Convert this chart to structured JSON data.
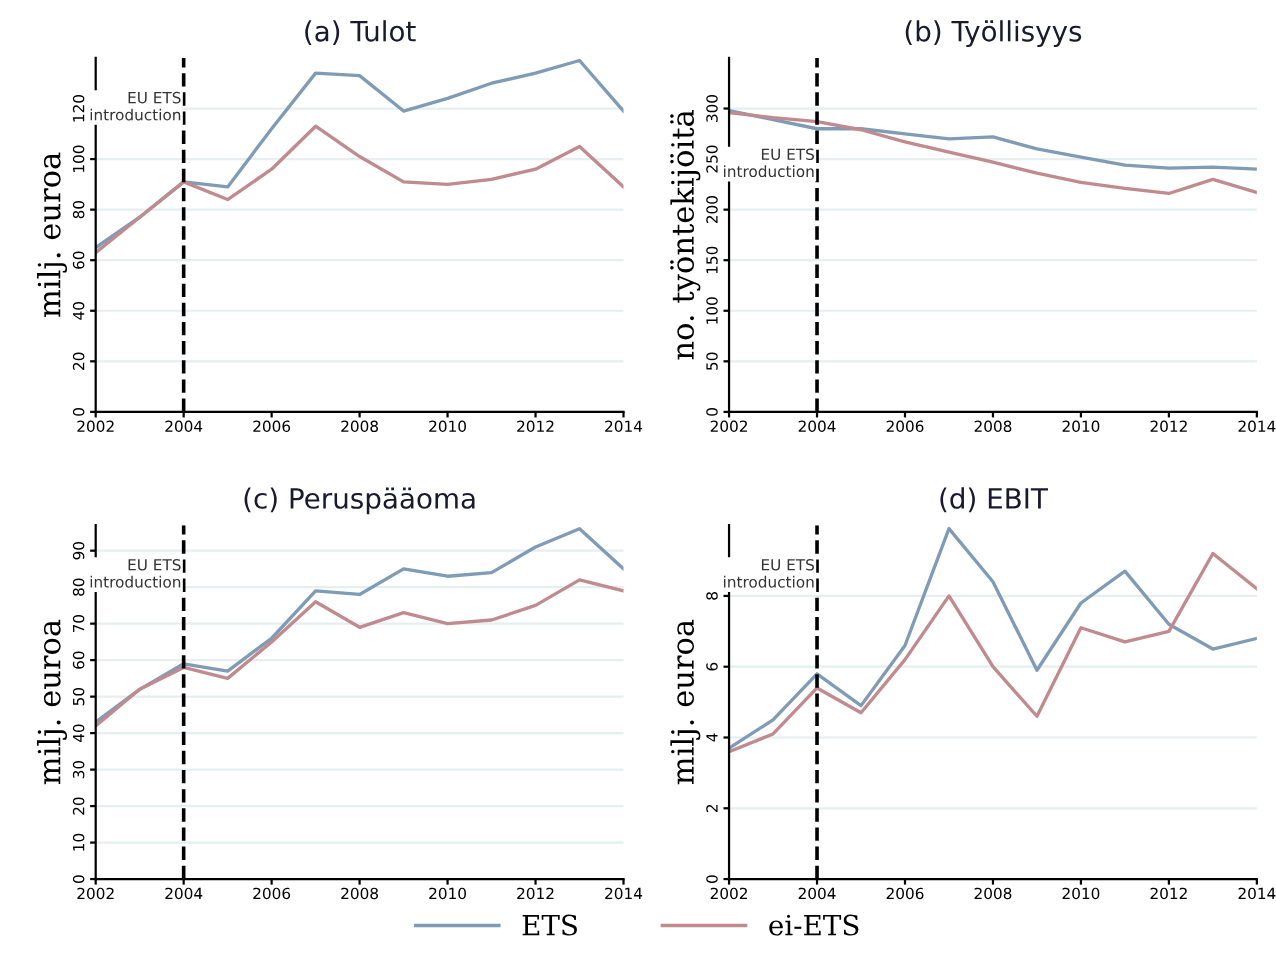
{
  "chart_data": [
    {
      "type": "line",
      "title": "(a) Tulot",
      "ylabel": "milj. euroa",
      "x": [
        2002,
        2003,
        2004,
        2005,
        2006,
        2007,
        2008,
        2009,
        2010,
        2011,
        2012,
        2013,
        2014
      ],
      "series": [
        {
          "color": "#7f9bb5",
          "values": [
            65,
            77,
            91,
            89,
            112,
            134,
            133,
            119,
            124,
            130,
            134,
            139,
            119
          ]
        },
        {
          "color": "#c08a8f",
          "values": [
            63,
            77,
            91,
            84,
            96,
            113,
            101,
            91,
            90,
            92,
            96,
            105,
            89
          ]
        }
      ],
      "xlim": [
        2002,
        2014
      ],
      "xticks": [
        2002,
        2004,
        2006,
        2008,
        2010,
        2012,
        2014
      ],
      "ylim": [
        0,
        140
      ],
      "yticks": [
        0,
        20,
        40,
        60,
        80,
        100,
        120
      ],
      "grid": "y",
      "ref_lines": [
        {
          "axis": "x",
          "value": 2004,
          "label": "EU ETS\nintroduction",
          "color": "#000000",
          "line_style": "dashed"
        }
      ]
    },
    {
      "type": "line",
      "title": "(b) Työllisyys",
      "ylabel": "no. työntekijöitä",
      "x": [
        2002,
        2003,
        2004,
        2005,
        2006,
        2007,
        2008,
        2009,
        2010,
        2011,
        2012,
        2013,
        2014
      ],
      "series": [
        {
          "color": "#7f9bb5",
          "values": [
            298,
            289,
            280,
            280,
            275,
            270,
            272,
            260,
            252,
            244,
            241,
            242,
            240
          ]
        },
        {
          "color": "#c08a8f",
          "values": [
            296,
            291,
            287,
            279,
            267,
            257,
            247,
            236,
            227,
            221,
            216,
            230,
            217
          ]
        }
      ],
      "xlim": [
        2002,
        2014
      ],
      "xticks": [
        2002,
        2004,
        2006,
        2008,
        2010,
        2012,
        2014
      ],
      "ylim": [
        0,
        350
      ],
      "yticks": [
        0,
        50,
        100,
        150,
        200,
        250,
        300
      ],
      "grid": "y",
      "ref_lines": [
        {
          "axis": "x",
          "value": 2004,
          "label": "EU ETS\nintroduction",
          "color": "#000000",
          "line_style": "dashed"
        }
      ]
    },
    {
      "type": "line",
      "title": "(c) Peruspääoma",
      "ylabel": "milj. euroa",
      "x": [
        2002,
        2003,
        2004,
        2005,
        2006,
        2007,
        2008,
        2009,
        2010,
        2011,
        2012,
        2013,
        2014
      ],
      "series": [
        {
          "color": "#7f9bb5",
          "values": [
            43,
            52,
            59,
            57,
            66,
            79,
            78,
            85,
            83,
            84,
            91,
            96,
            85
          ]
        },
        {
          "color": "#c08a8f",
          "values": [
            42,
            52,
            58,
            55,
            65,
            76,
            69,
            73,
            70,
            71,
            75,
            82,
            79
          ]
        }
      ],
      "xlim": [
        2002,
        2014
      ],
      "xticks": [
        2002,
        2004,
        2006,
        2008,
        2010,
        2012,
        2014
      ],
      "ylim": [
        0,
        97
      ],
      "yticks": [
        0,
        10,
        20,
        30,
        40,
        50,
        60,
        70,
        80,
        90
      ],
      "grid": "y",
      "ref_lines": [
        {
          "axis": "x",
          "value": 2004,
          "label": "EU ETS\nintroduction",
          "color": "#000000",
          "line_style": "dashed"
        }
      ]
    },
    {
      "type": "line",
      "title": "(d) EBIT",
      "ylabel": "milj. euroa",
      "x": [
        2002,
        2003,
        2004,
        2005,
        2006,
        2007,
        2008,
        2009,
        2010,
        2011,
        2012,
        2013,
        2014
      ],
      "series": [
        {
          "name": "ETS",
          "color": "#7f9bb5",
          "values": [
            3.7,
            4.5,
            5.8,
            4.9,
            6.6,
            9.9,
            8.4,
            5.9,
            7.8,
            8.7,
            7.2,
            6.5,
            6.8
          ]
        },
        {
          "name": "ei-ETS",
          "color": "#c08a8f",
          "values": [
            3.6,
            4.1,
            5.4,
            4.7,
            6.2,
            8.0,
            6.0,
            4.6,
            7.1,
            6.7,
            7.0,
            9.2,
            8.2
          ]
        }
      ],
      "xlim": [
        2002,
        2014
      ],
      "xticks": [
        2002,
        2004,
        2006,
        2008,
        2010,
        2012,
        2014
      ],
      "ylim": [
        0,
        10
      ],
      "yticks": [
        0,
        2,
        4,
        6,
        8
      ],
      "grid": "y",
      "legend": "bottom",
      "ref_lines": [
        {
          "axis": "x",
          "value": 2004,
          "label": "EU ETS\nintroduction",
          "color": "#000000",
          "line_style": "dashed"
        }
      ]
    }
  ]
}
